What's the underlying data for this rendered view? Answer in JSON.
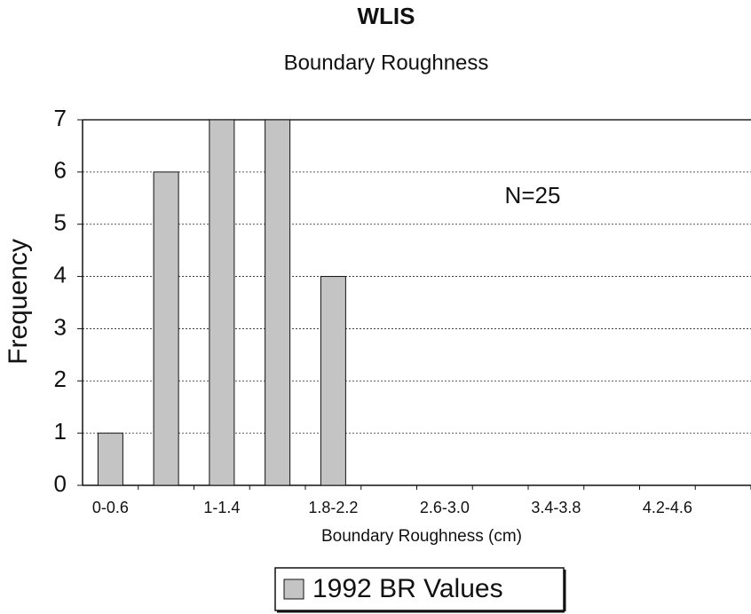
{
  "chart_data": {
    "type": "bar",
    "title": "WLIS",
    "subtitle": "Boundary Roughness",
    "x_label": "Boundary Roughness (cm)",
    "y_label": "Frequency",
    "annotation": "N=25",
    "categories": [
      "0-0.6",
      null,
      "1-1.4",
      null,
      "1.8-2.2",
      null,
      "2.6-3.0",
      null,
      "3.4-3.8",
      null,
      "4.2-4.6",
      null
    ],
    "series": [
      {
        "name": "1992 BR Values",
        "color": "#c4c4c4",
        "values": [
          1,
          6,
          7,
          7,
          4,
          0,
          0,
          0,
          0,
          0,
          0,
          0
        ]
      }
    ],
    "ylim": [
      0,
      7
    ],
    "yticks": [
      0,
      1,
      2,
      3,
      4,
      5,
      6,
      7
    ],
    "grid": true,
    "legend": "bottom"
  }
}
